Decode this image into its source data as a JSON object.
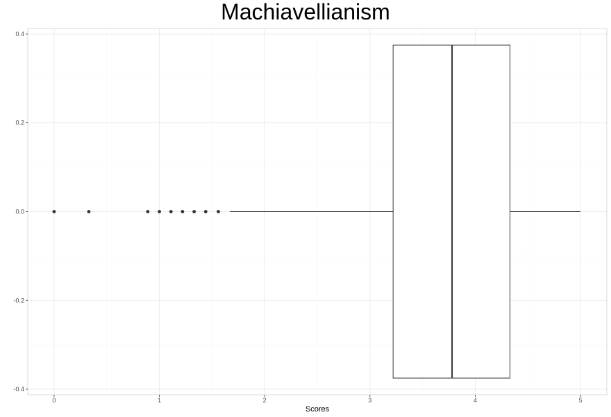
{
  "chart_data": {
    "type": "boxplot",
    "title": "Machiavellianism",
    "xlabel": "Scores",
    "ylabel": "",
    "orientation": "horizontal",
    "xlim": [
      -0.25,
      5.25
    ],
    "ylim": [
      -0.4,
      0.4
    ],
    "x_ticks": [
      0,
      1,
      2,
      3,
      4,
      5
    ],
    "y_ticks": [
      -0.4,
      -0.2,
      0.0,
      0.2,
      0.4
    ],
    "y_tick_labels": [
      "-0.4",
      "-0.2",
      "0.0",
      "0.2",
      "0.4"
    ],
    "grid": true,
    "box": {
      "q1": 3.22,
      "median": 3.78,
      "q3": 4.33,
      "whisker_low": 1.67,
      "whisker_high": 5.0,
      "y_center": 0.0,
      "y_half_height": 0.375
    },
    "outliers": [
      0.0,
      0.33,
      0.89,
      1.0,
      1.11,
      1.22,
      1.33,
      1.44,
      1.56
    ],
    "colors": {
      "box_stroke": "#333333",
      "outlier": "#333333",
      "panel_border": "#d9d9d9",
      "grid_major": "#ebebeb",
      "grid_minor": "#f5f5f5"
    }
  }
}
